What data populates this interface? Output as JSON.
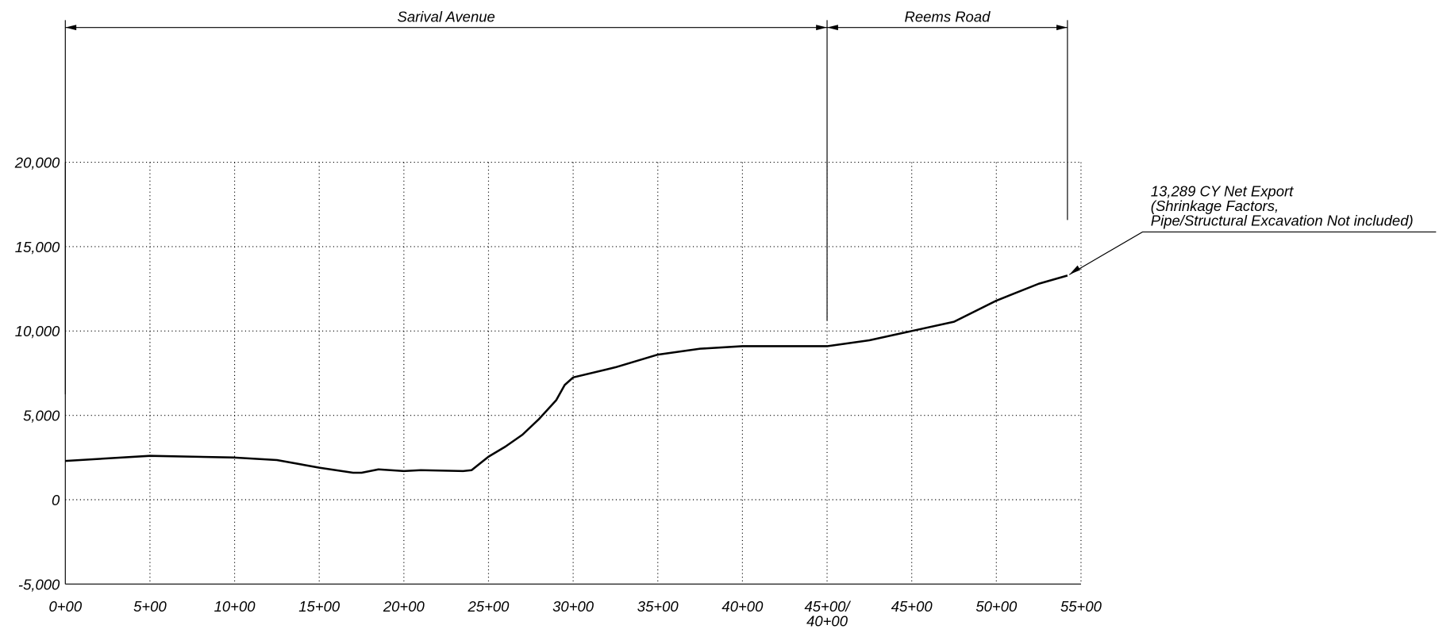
{
  "chart_data": {
    "type": "line",
    "x": [
      0,
      500,
      1000,
      1250,
      1500,
      1700,
      1750,
      1850,
      2000,
      2100,
      2350,
      2400,
      2500,
      2600,
      2700,
      2800,
      2900,
      2950,
      3000,
      3250,
      3500,
      3750,
      4000,
      4500,
      4750,
      5000,
      5250,
      5500,
      5750,
      5920
    ],
    "series": [
      {
        "name": "Net Export",
        "color": "#000000",
        "values": [
          2300,
          2600,
          2500,
          2350,
          1900,
          1600,
          1600,
          1800,
          1700,
          1750,
          1700,
          1750,
          2550,
          3150,
          3850,
          4800,
          5900,
          6800,
          7250,
          7850,
          8600,
          8950,
          9100,
          9100,
          9450,
          10000,
          10550,
          11800,
          12800,
          13289
        ]
      }
    ],
    "xlim": [
      0,
      6000
    ],
    "xticks": [
      {
        "value": 0,
        "label": "0+00"
      },
      {
        "value": 500,
        "label": "5+00"
      },
      {
        "value": 1000,
        "label": "10+00"
      },
      {
        "value": 1500,
        "label": "15+00"
      },
      {
        "value": 2000,
        "label": "20+00"
      },
      {
        "value": 2500,
        "label": "25+00"
      },
      {
        "value": 3000,
        "label": "30+00"
      },
      {
        "value": 3500,
        "label": "35+00"
      },
      {
        "value": 4000,
        "label": "40+00"
      },
      {
        "value": 4500,
        "label": "45+00/\n40+00"
      },
      {
        "value": 5000,
        "label": "45+00"
      },
      {
        "value": 5500,
        "label": "50+00"
      },
      {
        "value": 6000,
        "label": "55+00"
      }
    ],
    "ylim": [
      -5000,
      20000
    ],
    "yticks": [
      {
        "value": -5000,
        "label": "-5,000"
      },
      0,
      {
        "value": 5000,
        "label": "5,000"
      },
      {
        "value": 10000,
        "label": "10,000"
      },
      {
        "value": 15000,
        "label": "15,000"
      },
      {
        "value": 20000,
        "label": "20,000"
      }
    ],
    "grid": true,
    "segments": [
      {
        "name": "Sarival Avenue",
        "start": 0,
        "end": 4500
      },
      {
        "name": "Reems Road",
        "start": 4500,
        "end": 5920
      }
    ],
    "annotation": [
      "13,289 CY Net Export",
      "(Shrinkage Factors,",
      "Pipe/Structural Excavation Not included)"
    ]
  }
}
